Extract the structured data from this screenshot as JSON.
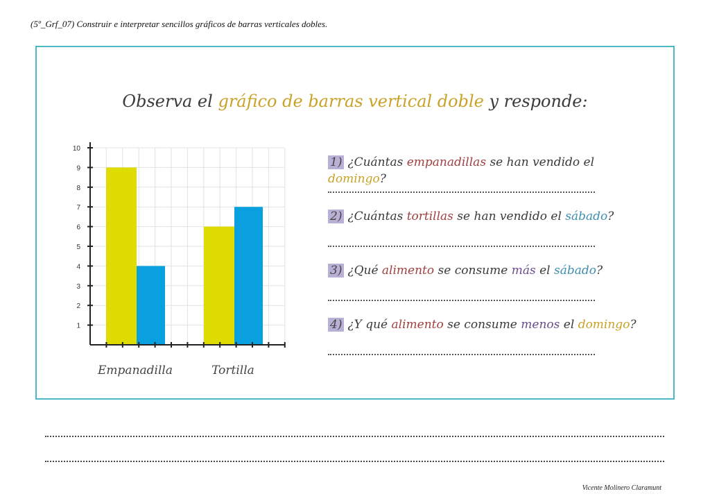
{
  "header": "(5º_Grf_07) Construir e interpretar sencillos gráficos de barras verticales dobles.",
  "title": {
    "before": "Observa el ",
    "highlight": "gráfico de barras vertical doble",
    "after": " y responde:"
  },
  "colors": {
    "frame": "#4db6c4",
    "series_yellow": "#dedc00",
    "series_blue": "#0aa0e0",
    "red": "#a0403f",
    "gold": "#c9a227",
    "blue": "#3e8fb0",
    "purple": "#6a4c8c"
  },
  "questions": [
    {
      "num": "1)",
      "parts": [
        {
          "t": "¿Cuántas "
        },
        {
          "t": "empanadillas",
          "c": "red"
        },
        {
          "t": " se han vendido el "
        },
        {
          "t": "domingo",
          "c": "gold"
        },
        {
          "t": "?"
        }
      ]
    },
    {
      "num": "2)",
      "parts": [
        {
          "t": "¿Cuántas "
        },
        {
          "t": "tortillas",
          "c": "red"
        },
        {
          "t": " se han vendido el "
        },
        {
          "t": "sábado",
          "c": "blue"
        },
        {
          "t": "?"
        }
      ]
    },
    {
      "num": "3)",
      "parts": [
        {
          "t": "¿Qué "
        },
        {
          "t": "alimento",
          "c": "red"
        },
        {
          "t": " se consume "
        },
        {
          "t": "más",
          "c": "purple"
        },
        {
          "t": " el "
        },
        {
          "t": "sábado",
          "c": "blue"
        },
        {
          "t": "?"
        }
      ]
    },
    {
      "num": "4)",
      "parts": [
        {
          "t": "¿Y qué "
        },
        {
          "t": "alimento",
          "c": "red"
        },
        {
          "t": " se consume "
        },
        {
          "t": "menos",
          "c": "purple"
        },
        {
          "t": " el "
        },
        {
          "t": "domingo",
          "c": "gold"
        },
        {
          "t": "?"
        }
      ]
    }
  ],
  "footer": "Vicente Molinero Claramunt",
  "chart_data": {
    "type": "bar",
    "categories": [
      "Empanadilla",
      "Tortilla"
    ],
    "series": [
      {
        "values": [
          9,
          6
        ],
        "color": "#dedc00"
      },
      {
        "values": [
          4,
          7
        ],
        "color": "#0aa0e0"
      }
    ],
    "yticks": [
      1,
      2,
      3,
      4,
      5,
      6,
      7,
      8,
      9,
      10
    ],
    "ylim": [
      0,
      10
    ],
    "grid": true
  }
}
